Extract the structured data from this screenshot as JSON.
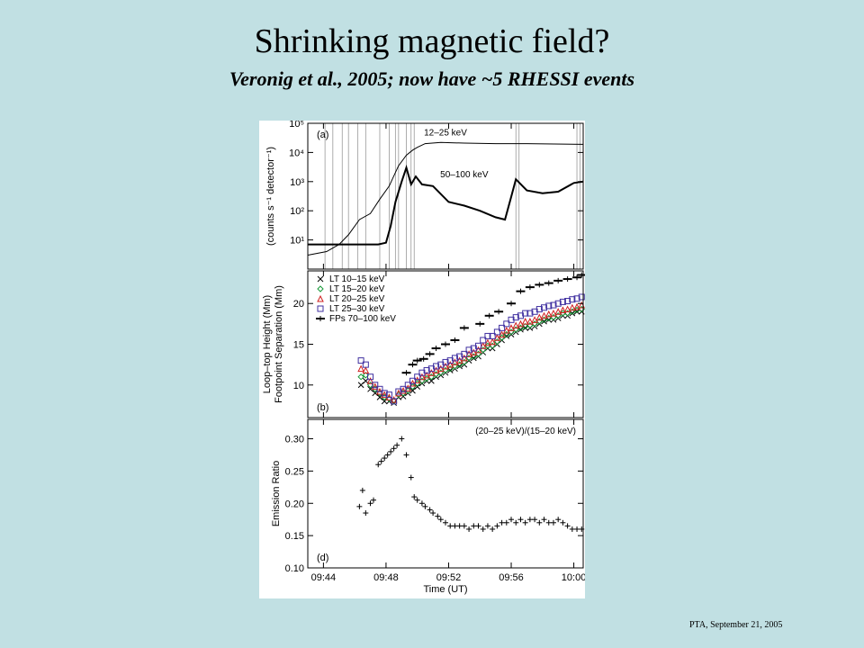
{
  "slide": {
    "title": "Shrinking magnetic field?",
    "subtitle": "Veronig et al., 2005; now have ~5 RHESSI events",
    "footer": "PTA, September 21, 2005"
  },
  "chart_data": [
    {
      "type": "line",
      "panel_label": "(a)",
      "ylabel": "(counts s⁻¹ detector⁻¹)",
      "yscale": "log",
      "ylim": [
        1,
        100000
      ],
      "ytick_labels": [
        "10¹",
        "10²",
        "10³",
        "10⁴",
        "10⁵"
      ],
      "xlim": [
        43.0,
        60.6
      ],
      "series": [
        {
          "name": "12–25 keV",
          "x": [
            43.0,
            44.2,
            45.0,
            45.6,
            46.3,
            47.0,
            47.6,
            48.2,
            48.8,
            49.3,
            49.7,
            50.0,
            50.5,
            51.5,
            53.0,
            55.0,
            57.0,
            60.6
          ],
          "y": [
            3,
            4,
            7,
            15,
            50,
            80,
            250,
            700,
            3500,
            8000,
            12000,
            15000,
            20000,
            22000,
            21000,
            20000,
            20000,
            19000
          ]
        },
        {
          "name": "50–100 keV",
          "x": [
            43.0,
            45.0,
            46.5,
            47.5,
            48.0,
            48.3,
            48.6,
            49.0,
            49.3,
            49.6,
            49.9,
            50.3,
            51.0,
            52.0,
            53.0,
            54.0,
            55.0,
            55.6,
            56.0,
            56.3,
            57.0,
            58.0,
            59.0,
            60.0,
            60.6
          ],
          "y": [
            7,
            7,
            7,
            7,
            8,
            30,
            200,
            1000,
            3000,
            800,
            1500,
            800,
            700,
            200,
            150,
            100,
            60,
            50,
            300,
            1200,
            500,
            400,
            450,
            900,
            1000
          ]
        }
      ],
      "vertical_lines_x": [
        44.1,
        44.6,
        45.2,
        45.6,
        46.2,
        46.7,
        47.6,
        48.2,
        48.6,
        48.8,
        49.3,
        49.6,
        49.8,
        56.3,
        56.5,
        60.2,
        60.4
      ]
    },
    {
      "type": "scatter",
      "panel_label": "(b)",
      "ylabel_lines": [
        "Loop–top Height (Mm)",
        "Footpoint Separation (Mm)"
      ],
      "ylim": [
        6,
        24
      ],
      "yticks": [
        10,
        15,
        20
      ],
      "xlim": [
        43.0,
        60.6
      ],
      "series": [
        {
          "name": "LT 10–15 keV",
          "marker": "x",
          "color": "#000000",
          "x": [
            46.4,
            46.7,
            47.0,
            47.3,
            47.6,
            47.9,
            48.2,
            48.5,
            48.8,
            49.1,
            49.4,
            49.7,
            50.0,
            50.3,
            50.6,
            50.9,
            51.2,
            51.5,
            51.8,
            52.1,
            52.4,
            52.7,
            53.0,
            53.3,
            53.6,
            53.9,
            54.2,
            54.5,
            54.8,
            55.1,
            55.4,
            55.7,
            56.0,
            56.3,
            56.6,
            56.9,
            57.2,
            57.5,
            57.8,
            58.1,
            58.4,
            58.7,
            59.0,
            59.3,
            59.6,
            59.9,
            60.2,
            60.5
          ],
          "y": [
            10.0,
            10.5,
            9.5,
            9.0,
            8.5,
            8.0,
            8.0,
            7.8,
            8.5,
            8.6,
            9.0,
            9.3,
            9.8,
            10.2,
            10.5,
            10.5,
            11.0,
            11.2,
            11.5,
            11.8,
            12.0,
            12.3,
            12.5,
            13.0,
            13.3,
            13.5,
            14.0,
            14.5,
            14.5,
            15.0,
            15.5,
            16.0,
            16.2,
            16.5,
            16.8,
            17.0,
            17.0,
            17.2,
            17.5,
            17.8,
            18.0,
            18.0,
            18.2,
            18.5,
            18.5,
            18.8,
            19.0,
            19.0
          ]
        },
        {
          "name": "LT 15–20 keV",
          "marker": "diamond",
          "color": "#1a9a3a",
          "x": [
            46.4,
            46.7,
            47.0,
            47.3,
            47.6,
            47.9,
            48.2,
            48.5,
            48.8,
            49.1,
            49.4,
            49.7,
            50.0,
            50.3,
            50.6,
            50.9,
            51.2,
            51.5,
            51.8,
            52.1,
            52.4,
            52.7,
            53.0,
            53.3,
            53.6,
            53.9,
            54.2,
            54.5,
            54.8,
            55.1,
            55.4,
            55.7,
            56.0,
            56.3,
            56.6,
            56.9,
            57.2,
            57.5,
            57.8,
            58.1,
            58.4,
            58.7,
            59.0,
            59.3,
            59.6,
            59.9,
            60.2,
            60.5
          ],
          "y": [
            11.0,
            11.2,
            10.0,
            9.5,
            9.0,
            8.5,
            8.3,
            8.0,
            8.8,
            9.0,
            9.3,
            9.8,
            10.2,
            10.5,
            10.8,
            11.0,
            11.3,
            11.5,
            11.8,
            12.0,
            12.3,
            12.5,
            12.8,
            13.3,
            13.5,
            13.8,
            14.3,
            14.8,
            14.8,
            15.3,
            15.8,
            16.2,
            16.5,
            16.8,
            17.0,
            17.2,
            17.3,
            17.5,
            17.8,
            18.0,
            18.2,
            18.3,
            18.5,
            18.8,
            18.8,
            19.0,
            19.2,
            19.3
          ]
        },
        {
          "name": "LT 20–25 keV",
          "marker": "triangle",
          "color": "#d02020",
          "x": [
            46.4,
            46.7,
            47.0,
            47.3,
            47.6,
            47.9,
            48.2,
            48.5,
            48.8,
            49.1,
            49.4,
            49.7,
            50.0,
            50.3,
            50.6,
            50.9,
            51.2,
            51.5,
            51.8,
            52.1,
            52.4,
            52.7,
            53.0,
            53.3,
            53.6,
            53.9,
            54.2,
            54.5,
            54.8,
            55.1,
            55.4,
            55.7,
            56.0,
            56.3,
            56.6,
            56.9,
            57.2,
            57.5,
            57.8,
            58.1,
            58.4,
            58.7,
            59.0,
            59.3,
            59.6,
            59.9,
            60.2,
            60.5
          ],
          "y": [
            12.0,
            11.8,
            10.5,
            9.8,
            9.2,
            8.8,
            8.5,
            8.2,
            9.0,
            9.3,
            9.6,
            10.2,
            10.6,
            11.0,
            11.2,
            11.5,
            11.8,
            12.0,
            12.3,
            12.5,
            12.8,
            13.0,
            13.3,
            13.8,
            14.0,
            14.3,
            14.8,
            15.2,
            15.3,
            15.8,
            16.2,
            16.7,
            17.0,
            17.3,
            17.5,
            17.8,
            17.8,
            18.0,
            18.3,
            18.5,
            18.7,
            18.8,
            19.0,
            19.2,
            19.3,
            19.5,
            19.6,
            19.8
          ]
        },
        {
          "name": "LT 25–30 keV",
          "marker": "square",
          "color": "#4030a0",
          "x": [
            46.4,
            46.7,
            47.0,
            47.3,
            47.6,
            47.9,
            48.2,
            48.5,
            48.8,
            49.1,
            49.4,
            49.7,
            50.0,
            50.3,
            50.6,
            50.9,
            51.2,
            51.5,
            51.8,
            52.1,
            52.4,
            52.7,
            53.0,
            53.3,
            53.6,
            53.9,
            54.2,
            54.5,
            54.8,
            55.1,
            55.4,
            55.7,
            56.0,
            56.3,
            56.6,
            56.9,
            57.2,
            57.5,
            57.8,
            58.1,
            58.4,
            58.7,
            59.0,
            59.3,
            59.6,
            59.9,
            60.2,
            60.5
          ],
          "y": [
            13.0,
            12.5,
            11.0,
            10.0,
            9.5,
            9.0,
            8.8,
            8.0,
            9.2,
            9.5,
            10.0,
            10.5,
            11.0,
            11.5,
            11.8,
            12.0,
            12.3,
            12.5,
            12.8,
            13.0,
            13.3,
            13.5,
            13.8,
            14.3,
            14.5,
            14.8,
            15.5,
            16.0,
            16.0,
            16.5,
            17.0,
            17.5,
            18.0,
            18.3,
            18.5,
            18.8,
            18.8,
            19.0,
            19.3,
            19.5,
            19.7,
            19.8,
            20.0,
            20.2,
            20.3,
            20.5,
            20.6,
            20.8
          ]
        },
        {
          "name": "FPs 70–100 keV",
          "marker": "plus-line",
          "color": "#000000",
          "x": [
            49.3,
            49.7,
            50.0,
            50.4,
            50.8,
            51.2,
            51.8,
            52.4,
            53.0,
            54.0,
            54.6,
            55.2,
            56.0,
            56.6,
            57.2,
            57.8,
            58.4,
            59.0,
            59.6,
            60.2,
            60.5
          ],
          "y": [
            11.5,
            12.5,
            13.0,
            13.2,
            13.8,
            14.5,
            15.0,
            15.5,
            17.0,
            17.5,
            18.5,
            19.0,
            20.0,
            21.5,
            22.0,
            22.3,
            22.5,
            22.8,
            23.0,
            23.2,
            23.5
          ]
        }
      ]
    },
    {
      "type": "scatter",
      "panel_label": "(d)",
      "ylabel": "Emission Ratio",
      "series_label": "(20–25 keV)/(15–20 keV)",
      "ylim": [
        0.1,
        0.33
      ],
      "yticks": [
        0.1,
        0.15,
        0.2,
        0.25,
        0.3
      ],
      "ytick_labels": [
        "0.10",
        "0.15",
        "0.20",
        "0.25",
        "0.30"
      ],
      "xlim": [
        43.0,
        60.6
      ],
      "xticks": [
        44,
        48,
        52,
        56,
        60
      ],
      "xtick_labels": [
        "09:44",
        "09:48",
        "09:52",
        "09:56",
        "10:00"
      ],
      "xlabel": "Time (UT)",
      "series": [
        {
          "name": "",
          "x": [
            46.3,
            46.5,
            46.7,
            47.0,
            47.2,
            47.5,
            47.7,
            47.9,
            48.1,
            48.3,
            48.5,
            48.7,
            49.0,
            49.3,
            49.6,
            49.8,
            50.0,
            50.3,
            50.5,
            50.8,
            51.0,
            51.3,
            51.5,
            51.8,
            52.1,
            52.4,
            52.7,
            53.0,
            53.3,
            53.6,
            53.9,
            54.2,
            54.5,
            54.8,
            55.1,
            55.4,
            55.7,
            56.0,
            56.3,
            56.6,
            56.9,
            57.2,
            57.5,
            57.8,
            58.1,
            58.4,
            58.7,
            59.0,
            59.3,
            59.6,
            59.9,
            60.2,
            60.5
          ],
          "y": [
            0.195,
            0.22,
            0.185,
            0.2,
            0.205,
            0.26,
            0.265,
            0.27,
            0.275,
            0.28,
            0.285,
            0.29,
            0.3,
            0.275,
            0.24,
            0.21,
            0.205,
            0.2,
            0.195,
            0.19,
            0.185,
            0.18,
            0.175,
            0.17,
            0.165,
            0.165,
            0.165,
            0.165,
            0.16,
            0.165,
            0.165,
            0.16,
            0.165,
            0.16,
            0.165,
            0.17,
            0.17,
            0.175,
            0.17,
            0.175,
            0.17,
            0.175,
            0.175,
            0.17,
            0.175,
            0.17,
            0.17,
            0.175,
            0.17,
            0.165,
            0.16,
            0.16,
            0.16
          ]
        }
      ]
    }
  ]
}
